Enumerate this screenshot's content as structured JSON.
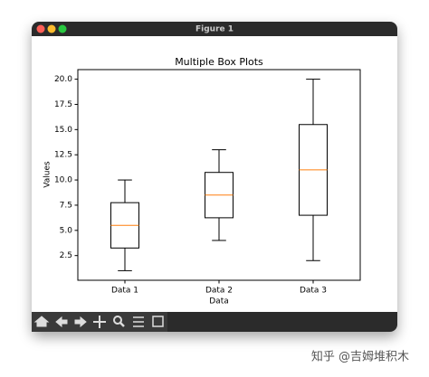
{
  "window_title": "Figure 1",
  "watermark": "知乎 @吉姆堆积木",
  "chart_data": {
    "type": "box",
    "title": "Multiple Box Plots",
    "x_label": "Data",
    "y_label": "Values",
    "categories": [
      "Data 1",
      "Data 2",
      "Data 3"
    ],
    "whisker_low": [
      1,
      4,
      2
    ],
    "q1": [
      3.25,
      6.25,
      6.5
    ],
    "median": [
      5.5,
      8.5,
      11
    ],
    "q3": [
      7.75,
      10.75,
      15.5
    ],
    "whisker_high": [
      10,
      13,
      20
    ],
    "box_color": "#000000",
    "median_color": "#ff7f0e",
    "xlim": [
      0.5,
      3.5
    ],
    "ylim": [
      0.05,
      20.95
    ],
    "yticks": [
      2.5,
      {
        "value": 5,
        "label": "5.0"
      },
      7.5,
      {
        "value": 10,
        "label": "10.0"
      },
      12.5,
      {
        "value": 15,
        "label": "15.0"
      },
      17.5,
      {
        "value": 20,
        "label": "20.0"
      }
    ]
  }
}
